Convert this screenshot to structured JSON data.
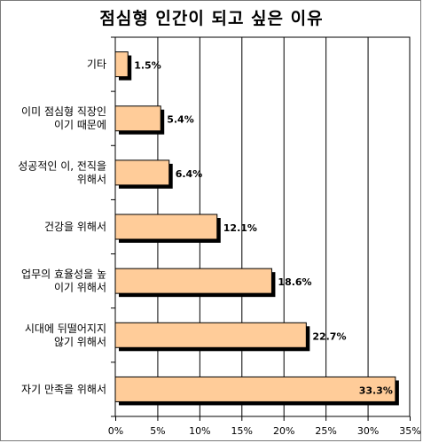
{
  "chart_data": {
    "type": "bar",
    "orientation": "horizontal",
    "title": "점심형 인간이 되고 싶은 이유",
    "categories": [
      "기타",
      "이미 점심형 직장인\n이기 때문에",
      "성공적인 이, 전직을\n위해서",
      "건강을 위해서",
      "업무의 효율성을 높\n이기 위해서",
      "시대에 뒤떨어지지\n않기 위해서",
      "자기 만족을 위해서"
    ],
    "values": [
      1.5,
      5.4,
      6.4,
      12.1,
      18.6,
      22.7,
      33.3
    ],
    "data_labels": [
      "1.5%",
      "5.4%",
      "6.4%",
      "12.1%",
      "18.6%",
      "22.7%",
      "33.3%"
    ],
    "xlim": [
      0,
      35
    ],
    "x_ticks": [
      0,
      5,
      10,
      15,
      20,
      25,
      30,
      35
    ],
    "x_tick_labels": [
      "0%",
      "5%",
      "10%",
      "15%",
      "20%",
      "25%",
      "30%",
      "35%"
    ],
    "grid": true,
    "legend": "none",
    "colors": {
      "bar_fill": "#FFCC99",
      "bar_stroke": "#000000",
      "bar_shadow": "#000000",
      "grid": "#000000",
      "plot_background": "#FFFFFF"
    }
  }
}
